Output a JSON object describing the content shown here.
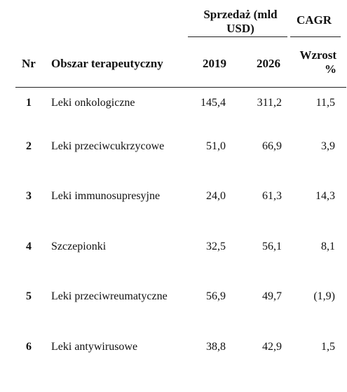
{
  "header": {
    "group_sales": "Sprzedaż (mld",
    "group_sales_line2": "USD)",
    "group_cagr": "CAGR",
    "col_nr": "Nr",
    "col_area": "Obszar terapeutyczny",
    "col_2019": "2019",
    "col_2026": "2026",
    "col_growth": "Wzrost",
    "col_growth_line2": "%"
  },
  "rows": [
    {
      "nr": "1",
      "area": "Leki onkologiczne",
      "y2019": "145,4",
      "y2026": "311,2",
      "growth": "11,5"
    },
    {
      "nr": "2",
      "area": "Leki przeciwcukrzycowe",
      "y2019": "51,0",
      "y2026": "66,9",
      "growth": "3,9"
    },
    {
      "nr": "3",
      "area": "Leki immunosupresyjne",
      "y2019": "24,0",
      "y2026": "61,3",
      "growth": "14,3"
    },
    {
      "nr": "4",
      "area": "Szczepionki",
      "y2019": "32,5",
      "y2026": "56,1",
      "growth": "8,1"
    },
    {
      "nr": "5",
      "area": "Leki przeciwreumatyczne",
      "y2019": "56,9",
      "y2026": "49,7",
      "growth": "(1,9)"
    },
    {
      "nr": "6",
      "area": "Leki antywirusowe",
      "y2019": "38,8",
      "y2026": "42,9",
      "growth": "1,5"
    }
  ]
}
